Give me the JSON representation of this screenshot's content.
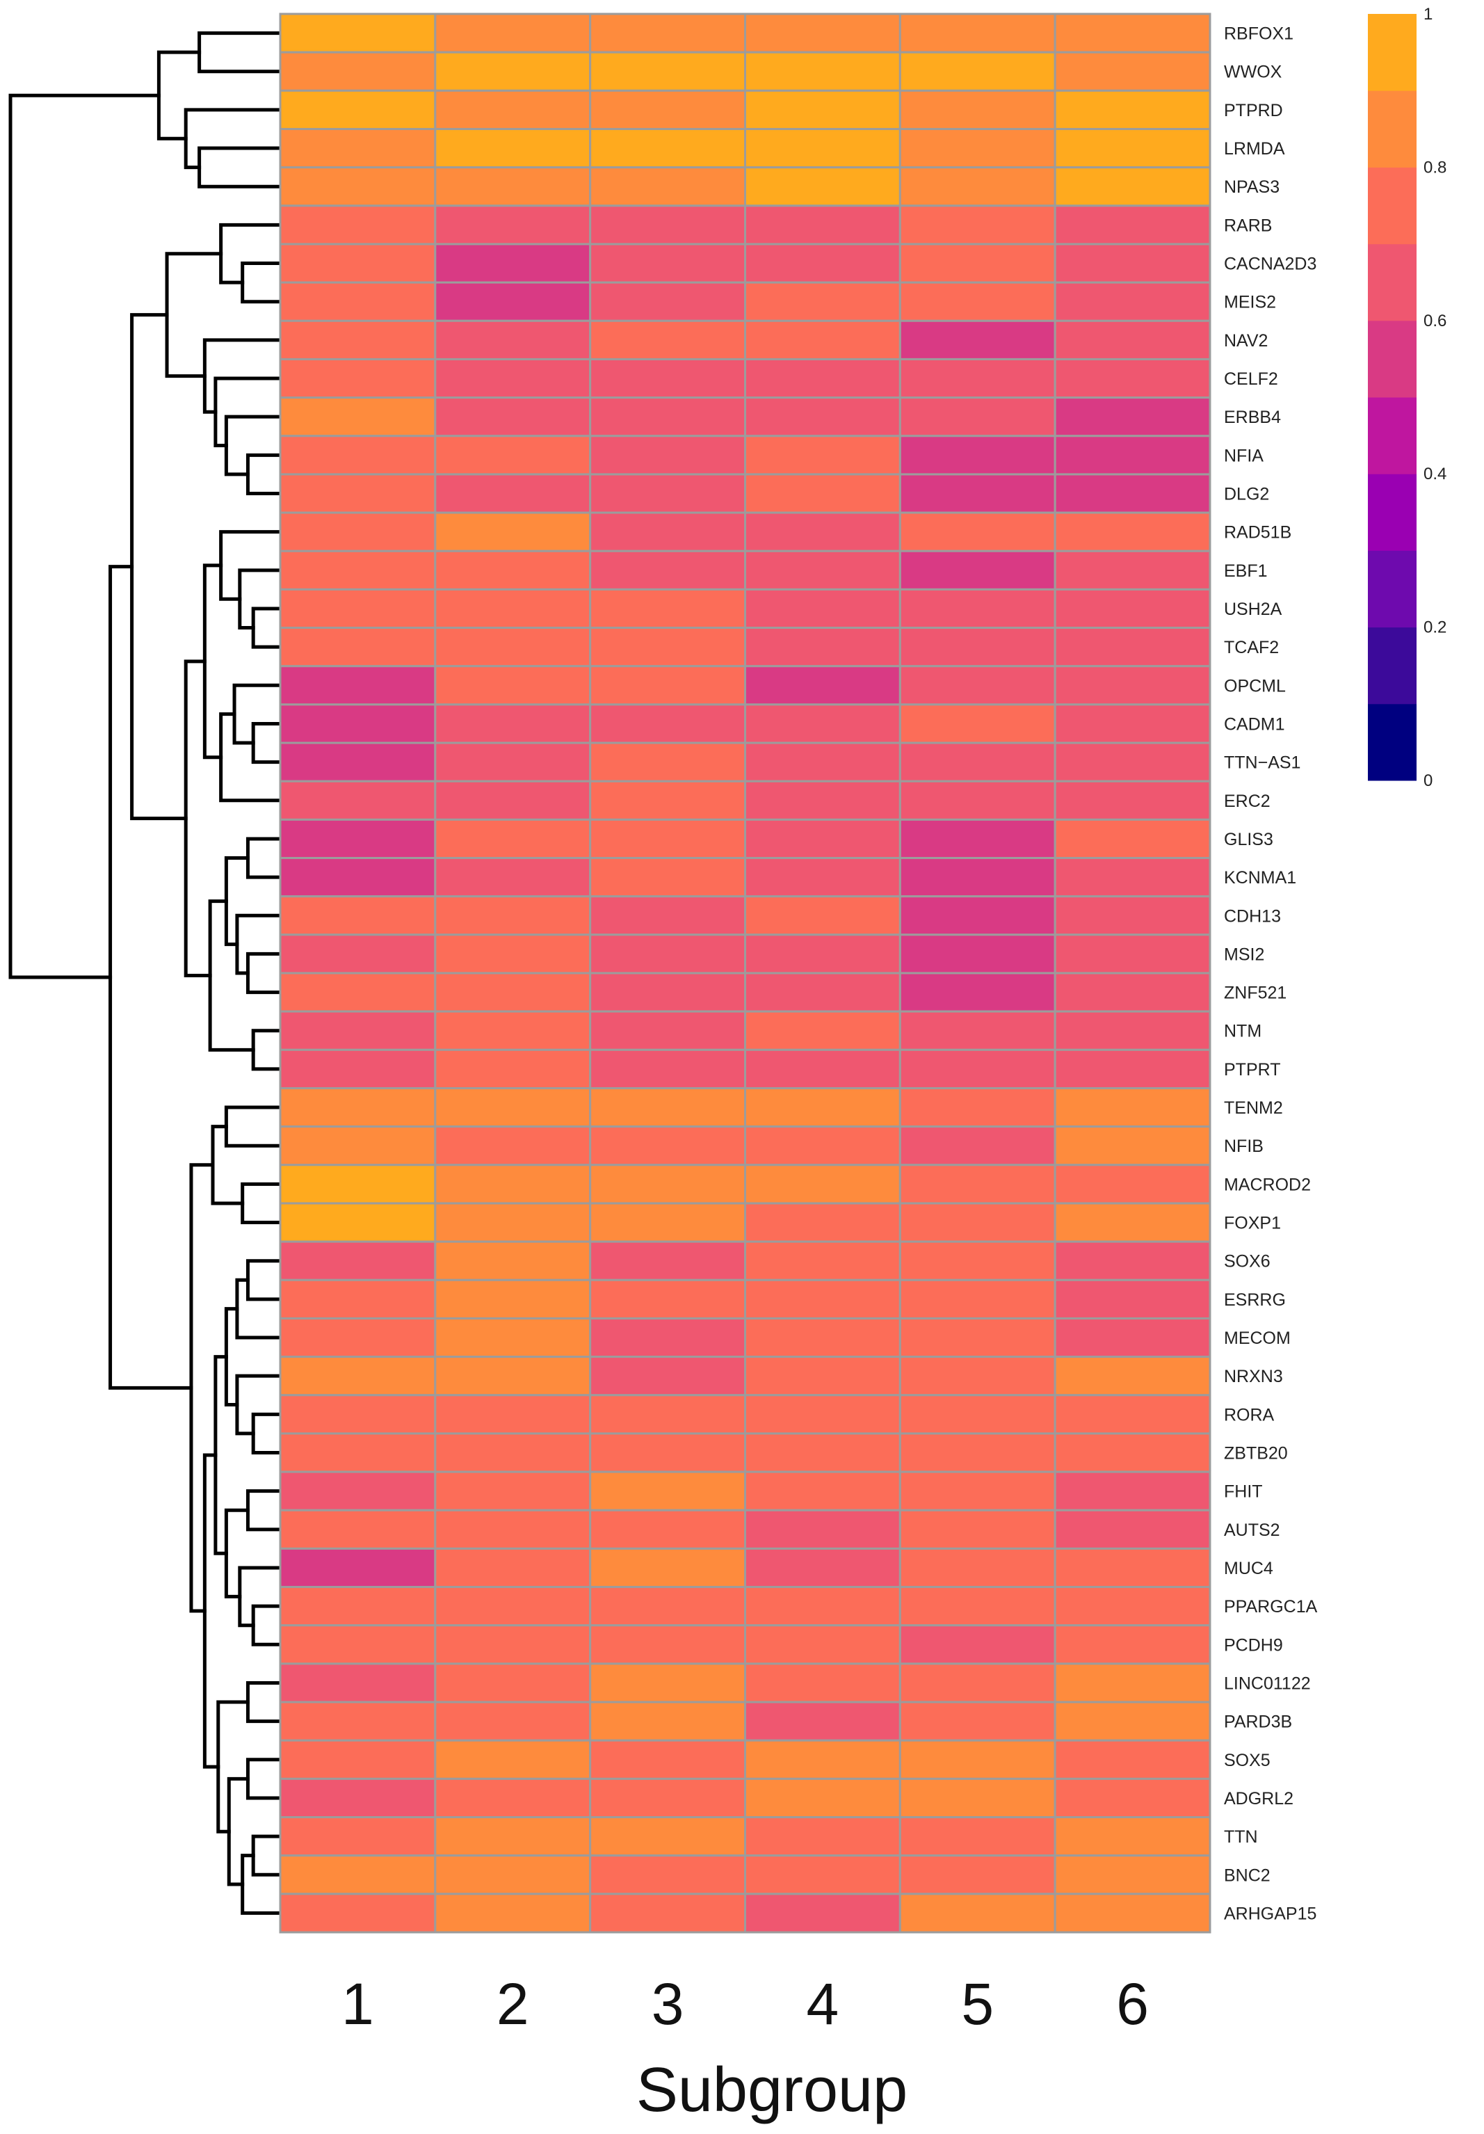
{
  "chart_data": {
    "type": "heatmap",
    "xlabel": "Subgroup",
    "columns": [
      "1",
      "2",
      "3",
      "4",
      "5",
      "6"
    ],
    "rows": [
      "RBFOX1",
      "WWOX",
      "PTPRD",
      "LRMDA",
      "NPAS3",
      "RARB",
      "CACNA2D3",
      "MEIS2",
      "NAV2",
      "CELF2",
      "ERBB4",
      "NFIA",
      "DLG2",
      "RAD51B",
      "EBF1",
      "USH2A",
      "TCAF2",
      "OPCML",
      "CADM1",
      "TTN−AS1",
      "ERC2",
      "GLIS3",
      "KCNMA1",
      "CDH13",
      "MSI2",
      "ZNF521",
      "NTM",
      "PTPRT",
      "TENM2",
      "NFIB",
      "MACROD2",
      "FOXP1",
      "SOX6",
      "ESRRG",
      "MECOM",
      "NRXN3",
      "RORA",
      "ZBTB20",
      "FHIT",
      "AUTS2",
      "MUC4",
      "PPARGC1A",
      "PCDH9",
      "LINC01122",
      "PARD3B",
      "SOX5",
      "ADGRL2",
      "TTN",
      "BNC2",
      "ARHGAP15"
    ],
    "values": [
      [
        0.95,
        0.85,
        0.85,
        0.85,
        0.85,
        0.85
      ],
      [
        0.85,
        0.95,
        0.95,
        0.95,
        0.95,
        0.85
      ],
      [
        0.95,
        0.85,
        0.85,
        0.95,
        0.85,
        0.95
      ],
      [
        0.85,
        0.95,
        0.95,
        0.95,
        0.85,
        0.95
      ],
      [
        0.85,
        0.85,
        0.85,
        0.95,
        0.85,
        0.95
      ],
      [
        0.75,
        0.65,
        0.65,
        0.65,
        0.75,
        0.65
      ],
      [
        0.75,
        0.55,
        0.65,
        0.65,
        0.75,
        0.65
      ],
      [
        0.75,
        0.55,
        0.65,
        0.75,
        0.75,
        0.65
      ],
      [
        0.75,
        0.65,
        0.75,
        0.75,
        0.55,
        0.65
      ],
      [
        0.75,
        0.65,
        0.65,
        0.65,
        0.65,
        0.65
      ],
      [
        0.85,
        0.65,
        0.65,
        0.65,
        0.65,
        0.55
      ],
      [
        0.75,
        0.75,
        0.65,
        0.75,
        0.55,
        0.55
      ],
      [
        0.75,
        0.65,
        0.65,
        0.75,
        0.55,
        0.55
      ],
      [
        0.75,
        0.85,
        0.65,
        0.65,
        0.75,
        0.75
      ],
      [
        0.75,
        0.75,
        0.65,
        0.65,
        0.55,
        0.65
      ],
      [
        0.75,
        0.75,
        0.75,
        0.65,
        0.65,
        0.65
      ],
      [
        0.75,
        0.75,
        0.75,
        0.65,
        0.65,
        0.65
      ],
      [
        0.55,
        0.75,
        0.75,
        0.55,
        0.65,
        0.65
      ],
      [
        0.55,
        0.65,
        0.65,
        0.65,
        0.75,
        0.65
      ],
      [
        0.55,
        0.65,
        0.75,
        0.65,
        0.65,
        0.65
      ],
      [
        0.65,
        0.65,
        0.75,
        0.65,
        0.65,
        0.65
      ],
      [
        0.55,
        0.75,
        0.75,
        0.65,
        0.55,
        0.75
      ],
      [
        0.55,
        0.65,
        0.75,
        0.65,
        0.55,
        0.65
      ],
      [
        0.75,
        0.75,
        0.65,
        0.75,
        0.55,
        0.65
      ],
      [
        0.65,
        0.75,
        0.65,
        0.65,
        0.55,
        0.65
      ],
      [
        0.75,
        0.75,
        0.65,
        0.65,
        0.55,
        0.65
      ],
      [
        0.65,
        0.75,
        0.65,
        0.75,
        0.65,
        0.65
      ],
      [
        0.65,
        0.75,
        0.65,
        0.65,
        0.65,
        0.65
      ],
      [
        0.85,
        0.85,
        0.85,
        0.85,
        0.75,
        0.85
      ],
      [
        0.85,
        0.75,
        0.75,
        0.75,
        0.65,
        0.85
      ],
      [
        0.95,
        0.85,
        0.85,
        0.85,
        0.75,
        0.75
      ],
      [
        0.95,
        0.85,
        0.85,
        0.75,
        0.75,
        0.85
      ],
      [
        0.65,
        0.85,
        0.65,
        0.75,
        0.75,
        0.65
      ],
      [
        0.75,
        0.85,
        0.75,
        0.75,
        0.75,
        0.65
      ],
      [
        0.75,
        0.85,
        0.65,
        0.75,
        0.75,
        0.65
      ],
      [
        0.85,
        0.85,
        0.65,
        0.75,
        0.75,
        0.85
      ],
      [
        0.75,
        0.75,
        0.75,
        0.75,
        0.75,
        0.75
      ],
      [
        0.75,
        0.75,
        0.75,
        0.75,
        0.75,
        0.75
      ],
      [
        0.65,
        0.75,
        0.85,
        0.75,
        0.75,
        0.65
      ],
      [
        0.75,
        0.75,
        0.75,
        0.65,
        0.75,
        0.65
      ],
      [
        0.55,
        0.75,
        0.85,
        0.65,
        0.75,
        0.75
      ],
      [
        0.75,
        0.75,
        0.75,
        0.75,
        0.75,
        0.75
      ],
      [
        0.75,
        0.75,
        0.75,
        0.75,
        0.65,
        0.75
      ],
      [
        0.65,
        0.75,
        0.85,
        0.75,
        0.75,
        0.85
      ],
      [
        0.75,
        0.75,
        0.85,
        0.65,
        0.75,
        0.85
      ],
      [
        0.75,
        0.85,
        0.75,
        0.85,
        0.85,
        0.75
      ],
      [
        0.65,
        0.75,
        0.75,
        0.85,
        0.85,
        0.75
      ],
      [
        0.75,
        0.85,
        0.85,
        0.75,
        0.75,
        0.85
      ],
      [
        0.85,
        0.85,
        0.75,
        0.75,
        0.75,
        0.85
      ],
      [
        0.75,
        0.85,
        0.75,
        0.65,
        0.85,
        0.85
      ]
    ],
    "color_scale": {
      "range": [
        0,
        1
      ],
      "bins": 10,
      "colors": [
        "#000080",
        "#3c0a9a",
        "#6e0aae",
        "#9a00b2",
        "#bf169f",
        "#d93a84",
        "#ef5770",
        "#fc6d58",
        "#fe8b3d",
        "#ffaa1e"
      ],
      "tick_labels": [
        "1",
        "0.8",
        "0.6",
        "0.4",
        "0.2",
        "0"
      ],
      "tick_values": [
        1,
        0.8,
        0.6,
        0.4,
        0.2,
        0
      ]
    },
    "cell_border_color": "#9c9c9c",
    "row_dendrogram": [
      {
        "a": "RBFOX1",
        "b": "WWOX",
        "h": 0.3
      },
      {
        "a": "LRMDA",
        "b": "NPAS3",
        "h": 0.3
      },
      {
        "a": "PTPRD",
        "b": "LRMDA+NPAS3",
        "h": 0.35
      },
      {
        "a": "RBFOX1+WWOX",
        "b": "PTPRD+LRMDA+NPAS3",
        "h": 0.45
      },
      {
        "a": "CACNA2D3",
        "b": "MEIS2",
        "h": 0.14
      },
      {
        "a": "RARB",
        "b": "CACNA2D3+MEIS2",
        "h": 0.22
      },
      {
        "a": "NFIA",
        "b": "DLG2",
        "h": 0.12
      },
      {
        "a": "ERBB4",
        "b": "NFIA+DLG2",
        "h": 0.2
      },
      {
        "a": "CELF2",
        "b": "ERBB4+NFIA+DLG2",
        "h": 0.24
      },
      {
        "a": "NAV2",
        "b": "CELF2+ERBB4+NFIA+DLG2",
        "h": 0.28
      },
      {
        "a": "RARB+CACNA2D3+MEIS2",
        "b": "NAV2+CELF2+ERBB4+NFIA+DLG2",
        "h": 0.42
      },
      {
        "a": "USH2A",
        "b": "TCAF2",
        "h": 0.1
      },
      {
        "a": "EBF1",
        "b": "USH2A+TCAF2",
        "h": 0.15
      },
      {
        "a": "RAD51B",
        "b": "EBF1+USH2A+TCAF2",
        "h": 0.22
      },
      {
        "a": "CADM1",
        "b": "TTN−AS1",
        "h": 0.1
      },
      {
        "a": "OPCML",
        "b": "CADM1+TTN−AS1",
        "h": 0.17
      },
      {
        "a": "OPCML+CADM1+TTN−AS1",
        "b": "ERC2",
        "h": 0.22
      },
      {
        "a": "RAD51B+EBF1+USH2A+TCAF2",
        "b": "OPCML+CADM1+TTN−AS1+ERC2",
        "h": 0.28
      },
      {
        "a": "GLIS3",
        "b": "KCNMA1",
        "h": 0.12
      },
      {
        "a": "MSI2",
        "b": "ZNF521",
        "h": 0.12
      },
      {
        "a": "CDH13",
        "b": "MSI2+ZNF521",
        "h": 0.16
      },
      {
        "a": "GLIS3+KCNMA1",
        "b": "CDH13+MSI2+ZNF521",
        "h": 0.2
      },
      {
        "a": "NTM",
        "b": "PTPRT",
        "h": 0.1
      },
      {
        "a": "GLIS3+KCNMA1+CDH13+MSI2+ZNF521",
        "b": "NTM+PTPRT",
        "h": 0.26
      },
      {
        "a": "RAD51B..ERC2",
        "b": "GLIS3..PTPRT",
        "h": 0.35
      },
      {
        "a": "RARB..DLG2",
        "b": "RAD51B..PTPRT",
        "h": 0.55
      },
      {
        "a": "TENM2",
        "b": "NFIB",
        "h": 0.2
      },
      {
        "a": "MACROD2",
        "b": "FOXP1",
        "h": 0.14
      },
      {
        "a": "TENM2+NFIB",
        "b": "MACROD2+FOXP1",
        "h": 0.25
      },
      {
        "a": "SOX6",
        "b": "ESRRG",
        "h": 0.12
      },
      {
        "a": "SOX6+ESRRG",
        "b": "MECOM",
        "h": 0.16
      },
      {
        "a": "RORA",
        "b": "ZBTB20",
        "h": 0.1
      },
      {
        "a": "NRXN3",
        "b": "RORA+ZBTB20",
        "h": 0.16
      },
      {
        "a": "SOX6+ESRRG+MECOM",
        "b": "NRXN3+RORA+ZBTB20",
        "h": 0.2
      },
      {
        "a": "FHIT",
        "b": "AUTS2",
        "h": 0.12
      },
      {
        "a": "PPARGC1A",
        "b": "PCDH9",
        "h": 0.1
      },
      {
        "a": "MUC4",
        "b": "PPARGC1A+PCDH9",
        "h": 0.15
      },
      {
        "a": "FHIT+AUTS2",
        "b": "MUC4+PPARGC1A+PCDH9",
        "h": 0.2
      },
      {
        "a": "SOX6..ZBTB20",
        "b": "FHIT..PCDH9",
        "h": 0.24
      },
      {
        "a": "LINC01122",
        "b": "PARD3B",
        "h": 0.12
      },
      {
        "a": "SOX5",
        "b": "ADGRL2",
        "h": 0.12
      },
      {
        "a": "TTN",
        "b": "BNC2",
        "h": 0.1
      },
      {
        "a": "TTN+BNC2",
        "b": "ARHGAP15",
        "h": 0.14
      },
      {
        "a": "SOX5+ADGRL2",
        "b": "TTN+BNC2+ARHGAP15",
        "h": 0.19
      },
      {
        "a": "LINC01122+PARD3B",
        "b": "SOX5..ARHGAP15",
        "h": 0.23
      },
      {
        "a": "SOX6..PCDH9",
        "b": "LINC01122..ARHGAP15",
        "h": 0.28
      },
      {
        "a": "TENM2..FOXP1",
        "b": "SOX6..ARHGAP15",
        "h": 0.33
      },
      {
        "a": "RARB..PTPRT",
        "b": "TENM2..ARHGAP15",
        "h": 0.63
      },
      {
        "a": "RBFOX1..NPAS3",
        "b": "RARB..ARHGAP15",
        "h": 1.0
      }
    ]
  }
}
